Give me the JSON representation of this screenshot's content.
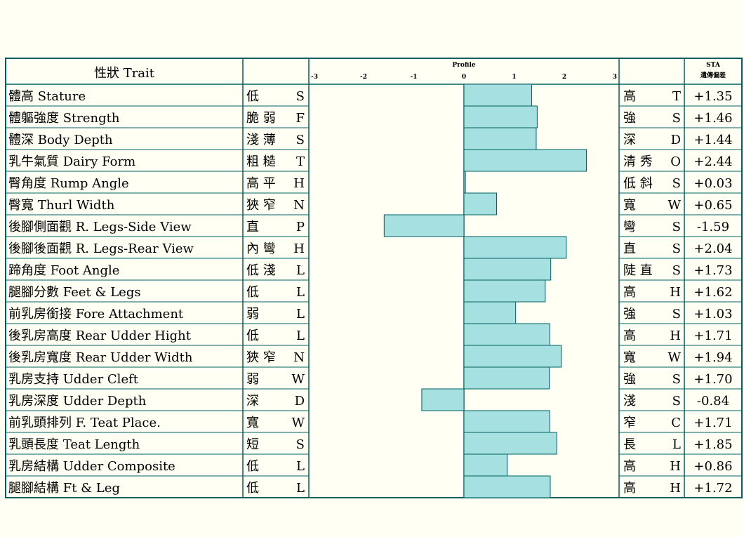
{
  "chart_data": {
    "type": "bar",
    "orientation": "horizontal",
    "header": {
      "trait": "性狀 Trait",
      "profile": "Profile",
      "sta_line1": "STA",
      "sta_line2": "遺傳偏差"
    },
    "xlim": [
      -3,
      3
    ],
    "ticks": [
      "-3",
      "-2",
      "-1",
      "0",
      "1",
      "2",
      "3"
    ],
    "colors": {
      "bar": "#a6e0e0",
      "border": "#006060",
      "background": "#fffff3"
    },
    "rows": [
      {
        "trait": "體高 Stature",
        "low": [
          "低",
          "S"
        ],
        "high": [
          "高",
          "T"
        ],
        "value": 1.35,
        "label": "+1.35"
      },
      {
        "trait": "體軀強度 Strength",
        "low": [
          "脆 弱",
          "F"
        ],
        "high": [
          "強",
          "S"
        ],
        "value": 1.46,
        "label": "+1.46"
      },
      {
        "trait": "體深 Body Depth",
        "low": [
          "淺 薄",
          "S"
        ],
        "high": [
          "深",
          "D"
        ],
        "value": 1.44,
        "label": "+1.44"
      },
      {
        "trait": "乳牛氣質 Dairy Form",
        "low": [
          "粗 糙",
          "T"
        ],
        "high": [
          "清 秀",
          "O"
        ],
        "value": 2.44,
        "label": "+2.44"
      },
      {
        "trait": "臀角度 Rump Angle",
        "low": [
          "高 平",
          "H"
        ],
        "high": [
          "低 斜",
          "S"
        ],
        "value": 0.03,
        "label": "+0.03"
      },
      {
        "trait": "臀寬 Thurl Width",
        "low": [
          "狹 窄",
          "N"
        ],
        "high": [
          "寬",
          "W"
        ],
        "value": 0.65,
        "label": "+0.65"
      },
      {
        "trait": "後腳側面觀 R. Legs-Side View",
        "low": [
          "直",
          "P"
        ],
        "high": [
          "彎",
          "S"
        ],
        "value": -1.59,
        "label": "-1.59"
      },
      {
        "trait": "後腳後面觀 R. Legs-Rear View",
        "low": [
          "內 彎",
          "H"
        ],
        "high": [
          "直",
          "S"
        ],
        "value": 2.04,
        "label": "+2.04"
      },
      {
        "trait": "蹄角度 Foot Angle",
        "low": [
          "低 淺",
          "L"
        ],
        "high": [
          "陡 直",
          "S"
        ],
        "value": 1.73,
        "label": "+1.73"
      },
      {
        "trait": "腿腳分數 Feet & Legs",
        "low": [
          "低",
          "L"
        ],
        "high": [
          "高",
          "H"
        ],
        "value": 1.62,
        "label": "+1.62"
      },
      {
        "trait": "前乳房銜接 Fore Attachment",
        "low": [
          "弱",
          "L"
        ],
        "high": [
          "強",
          "S"
        ],
        "value": 1.03,
        "label": "+1.03"
      },
      {
        "trait": "後乳房高度 Rear Udder Hight",
        "low": [
          "低",
          "L"
        ],
        "high": [
          "高",
          "H"
        ],
        "value": 1.71,
        "label": "+1.71"
      },
      {
        "trait": "後乳房寬度 Rear Udder Width",
        "low": [
          "狹 窄",
          "N"
        ],
        "high": [
          "寬",
          "W"
        ],
        "value": 1.94,
        "label": "+1.94"
      },
      {
        "trait": "乳房支持 Udder Cleft",
        "low": [
          "弱",
          "W"
        ],
        "high": [
          "強",
          "S"
        ],
        "value": 1.7,
        "label": "+1.70"
      },
      {
        "trait": "乳房深度 Udder Depth",
        "low": [
          "深",
          "D"
        ],
        "high": [
          "淺",
          "S"
        ],
        "value": -0.84,
        "label": "-0.84"
      },
      {
        "trait": "前乳頭排列 F. Teat Place.",
        "low": [
          "寬",
          "W"
        ],
        "high": [
          "窄",
          "C"
        ],
        "value": 1.71,
        "label": "+1.71"
      },
      {
        "trait": "乳頭長度 Teat Length",
        "low": [
          "短",
          "S"
        ],
        "high": [
          "長",
          "L"
        ],
        "value": 1.85,
        "label": "+1.85"
      },
      {
        "trait": "乳房結構 Udder Composite",
        "low": [
          "低",
          "L"
        ],
        "high": [
          "高",
          "H"
        ],
        "value": 0.86,
        "label": "+0.86"
      },
      {
        "trait": "腿腳結構 Ft & Leg",
        "low": [
          "低",
          "L"
        ],
        "high": [
          "高",
          "H"
        ],
        "value": 1.72,
        "label": "+1.72"
      }
    ]
  }
}
